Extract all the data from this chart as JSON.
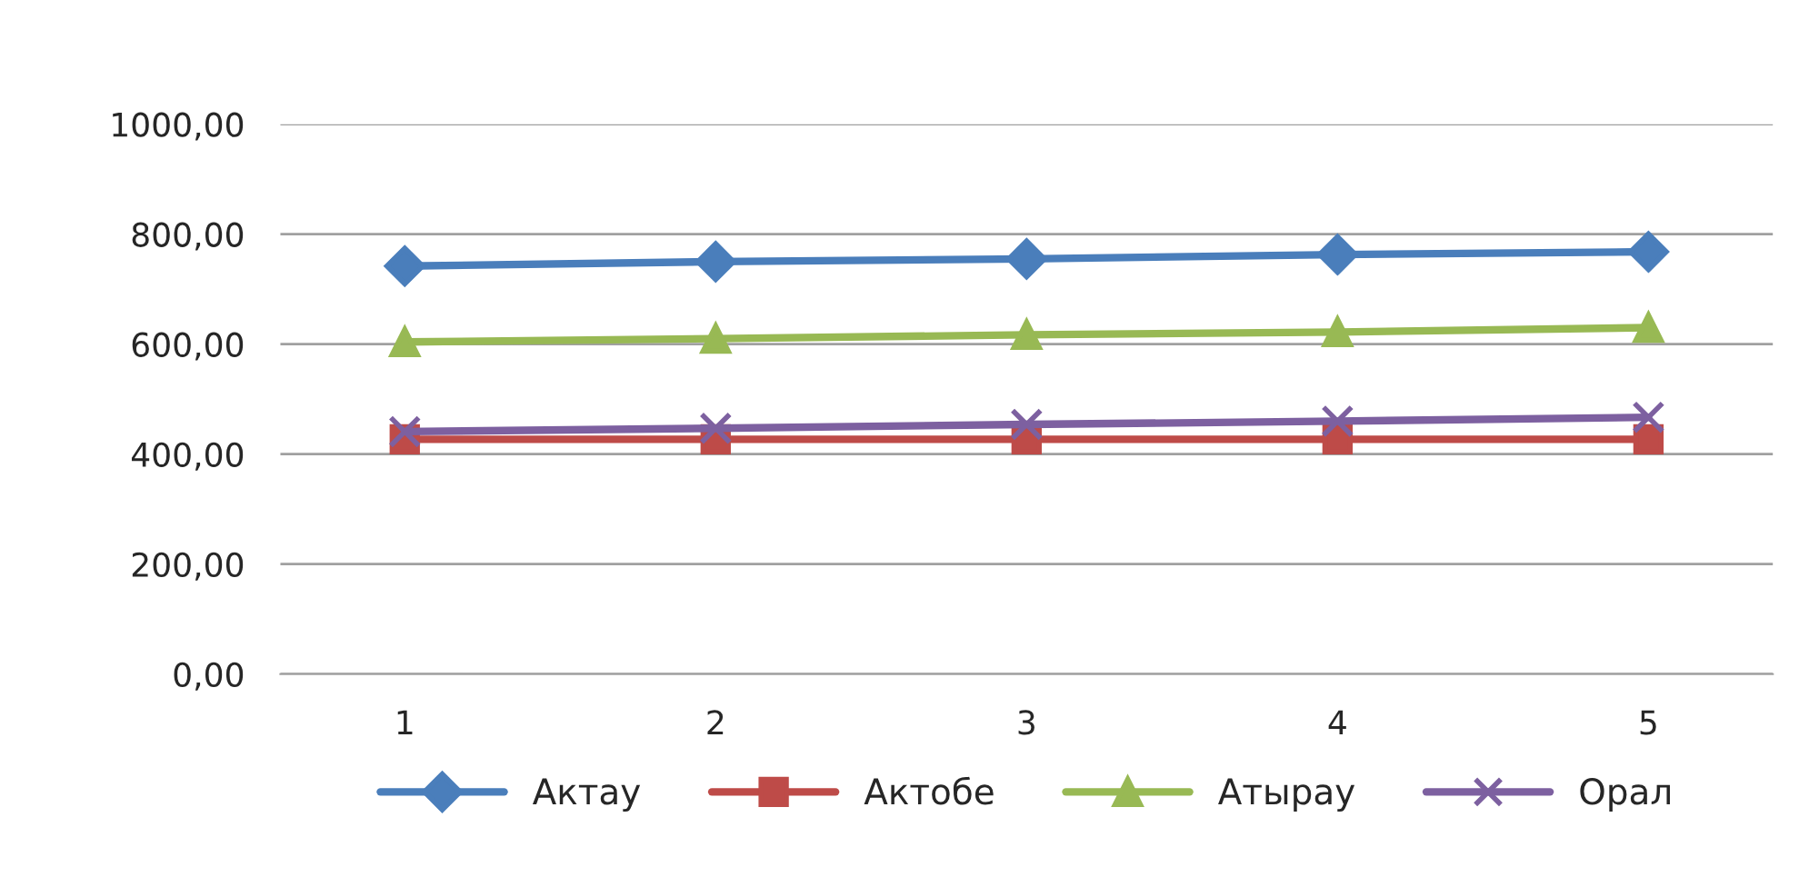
{
  "chart_data": {
    "type": "line",
    "categories": [
      "1",
      "2",
      "3",
      "4",
      "5"
    ],
    "series": [
      {
        "name": "Актау",
        "color": "#4a7ebb",
        "marker": "diamond",
        "values": [
          742,
          750,
          755,
          763,
          768
        ]
      },
      {
        "name": "Актобе",
        "color": "#be4b48",
        "marker": "square",
        "values": [
          427,
          427,
          427,
          427,
          427
        ]
      },
      {
        "name": "Атырау",
        "color": "#98b954",
        "marker": "triangle",
        "values": [
          604,
          610,
          617,
          622,
          630
        ]
      },
      {
        "name": "Орал",
        "color": "#7d60a0",
        "marker": "cross",
        "values": [
          441,
          447,
          454,
          460,
          467
        ]
      }
    ],
    "ylim": [
      0,
      1000
    ],
    "yticks": [
      {
        "value": 0,
        "label": "0,00"
      },
      {
        "value": 200,
        "label": "200,00"
      },
      {
        "value": 400,
        "label": "400,00"
      },
      {
        "value": 600,
        "label": "600,00"
      },
      {
        "value": 800,
        "label": "800,00"
      },
      {
        "value": 1000,
        "label": "1000,00"
      }
    ],
    "grid": "y",
    "legend": "bottom",
    "line_style": "solid"
  }
}
